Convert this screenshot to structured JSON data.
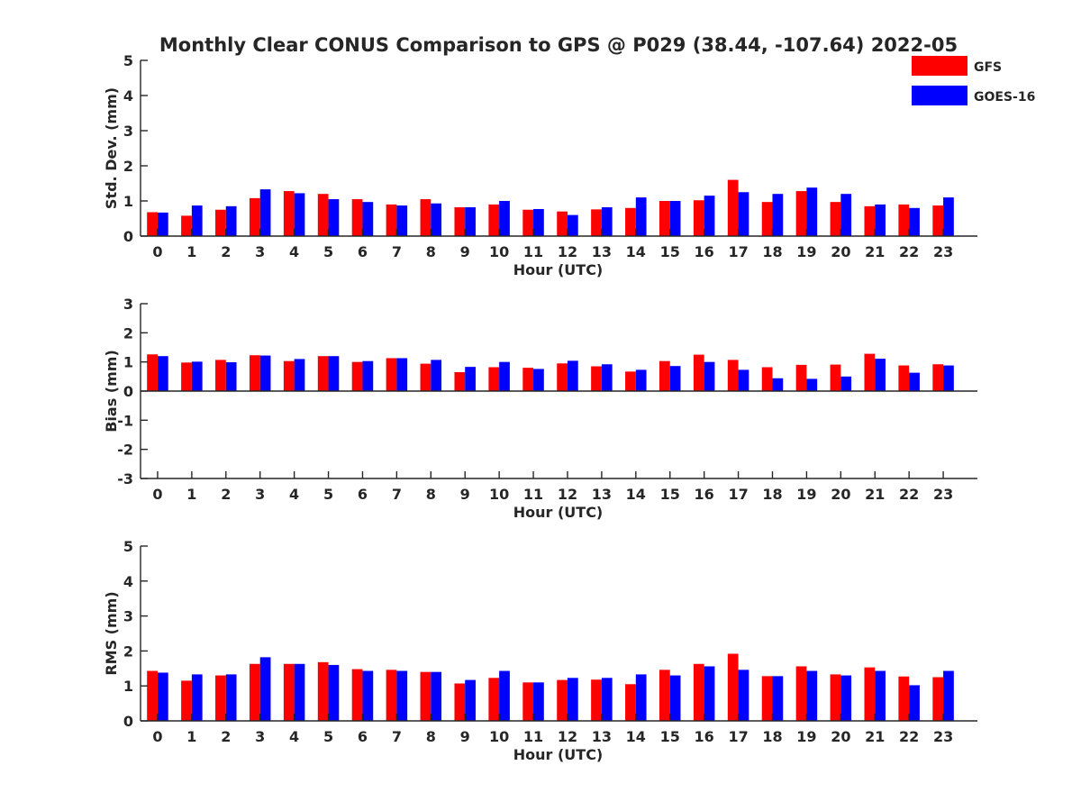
{
  "title": "Monthly Clear CONUS Comparison to GPS @ P029 (38.44, -107.64) 2022-05",
  "colors": {
    "GFS": "#ff0000",
    "GOES-16": "#0000ff"
  },
  "legend": {
    "placement": "top-right",
    "entries": [
      "GFS",
      "GOES-16"
    ]
  },
  "chart_data": [
    {
      "type": "bar",
      "xlabel": "Hour (UTC)",
      "ylabel": "Std. Dev. (mm)",
      "ylim": [
        0,
        5
      ],
      "yticks": [
        0,
        1,
        2,
        3,
        4,
        5
      ],
      "categories": [
        "0",
        "1",
        "2",
        "3",
        "4",
        "5",
        "6",
        "7",
        "8",
        "9",
        "10",
        "11",
        "12",
        "13",
        "14",
        "15",
        "16",
        "17",
        "18",
        "19",
        "20",
        "21",
        "22",
        "23"
      ],
      "series": [
        {
          "name": "GFS",
          "values": [
            0.68,
            0.58,
            0.75,
            1.08,
            1.28,
            1.2,
            1.05,
            0.9,
            1.05,
            0.82,
            0.9,
            0.75,
            0.7,
            0.76,
            0.8,
            1.0,
            1.02,
            1.6,
            0.97,
            1.28,
            0.97,
            0.85,
            0.9,
            0.87
          ]
        },
        {
          "name": "GOES-16",
          "values": [
            0.67,
            0.87,
            0.85,
            1.33,
            1.22,
            1.05,
            0.97,
            0.87,
            0.93,
            0.82,
            1.0,
            0.77,
            0.6,
            0.82,
            1.1,
            1.0,
            1.15,
            1.25,
            1.2,
            1.38,
            1.2,
            0.9,
            0.8,
            1.1
          ]
        }
      ]
    },
    {
      "type": "bar",
      "xlabel": "Hour (UTC)",
      "ylabel": "Bias (mm)",
      "ylim": [
        -3,
        3
      ],
      "yticks": [
        -3,
        -2,
        -1,
        0,
        1,
        2,
        3
      ],
      "categories": [
        "0",
        "1",
        "2",
        "3",
        "4",
        "5",
        "6",
        "7",
        "8",
        "9",
        "10",
        "11",
        "12",
        "13",
        "14",
        "15",
        "16",
        "17",
        "18",
        "19",
        "20",
        "21",
        "22",
        "23"
      ],
      "series": [
        {
          "name": "GFS",
          "values": [
            1.26,
            0.98,
            1.07,
            1.23,
            1.03,
            1.2,
            1.0,
            1.13,
            0.94,
            0.65,
            0.82,
            0.8,
            0.95,
            0.85,
            0.67,
            1.03,
            1.25,
            1.07,
            0.82,
            0.9,
            0.91,
            1.28,
            0.88,
            0.92
          ]
        },
        {
          "name": "GOES-16",
          "values": [
            1.2,
            1.01,
            0.99,
            1.22,
            1.1,
            1.2,
            1.03,
            1.13,
            1.07,
            0.83,
            1.0,
            0.76,
            1.04,
            0.92,
            0.73,
            0.86,
            1.0,
            0.73,
            0.44,
            0.42,
            0.5,
            1.11,
            0.63,
            0.88
          ]
        }
      ]
    },
    {
      "type": "bar",
      "xlabel": "Hour (UTC)",
      "ylabel": "RMS (mm)",
      "ylim": [
        0,
        5
      ],
      "yticks": [
        0,
        1,
        2,
        3,
        4,
        5
      ],
      "categories": [
        "0",
        "1",
        "2",
        "3",
        "4",
        "5",
        "6",
        "7",
        "8",
        "9",
        "10",
        "11",
        "12",
        "13",
        "14",
        "15",
        "16",
        "17",
        "18",
        "19",
        "20",
        "21",
        "22",
        "23"
      ],
      "series": [
        {
          "name": "GFS",
          "values": [
            1.43,
            1.15,
            1.3,
            1.63,
            1.63,
            1.68,
            1.48,
            1.46,
            1.4,
            1.07,
            1.23,
            1.1,
            1.17,
            1.18,
            1.05,
            1.46,
            1.63,
            1.92,
            1.28,
            1.56,
            1.33,
            1.53,
            1.27,
            1.25
          ]
        },
        {
          "name": "GOES-16",
          "values": [
            1.38,
            1.33,
            1.33,
            1.82,
            1.63,
            1.6,
            1.43,
            1.43,
            1.4,
            1.17,
            1.43,
            1.1,
            1.23,
            1.23,
            1.33,
            1.3,
            1.56,
            1.46,
            1.28,
            1.43,
            1.3,
            1.43,
            1.02,
            1.43
          ]
        }
      ]
    }
  ]
}
